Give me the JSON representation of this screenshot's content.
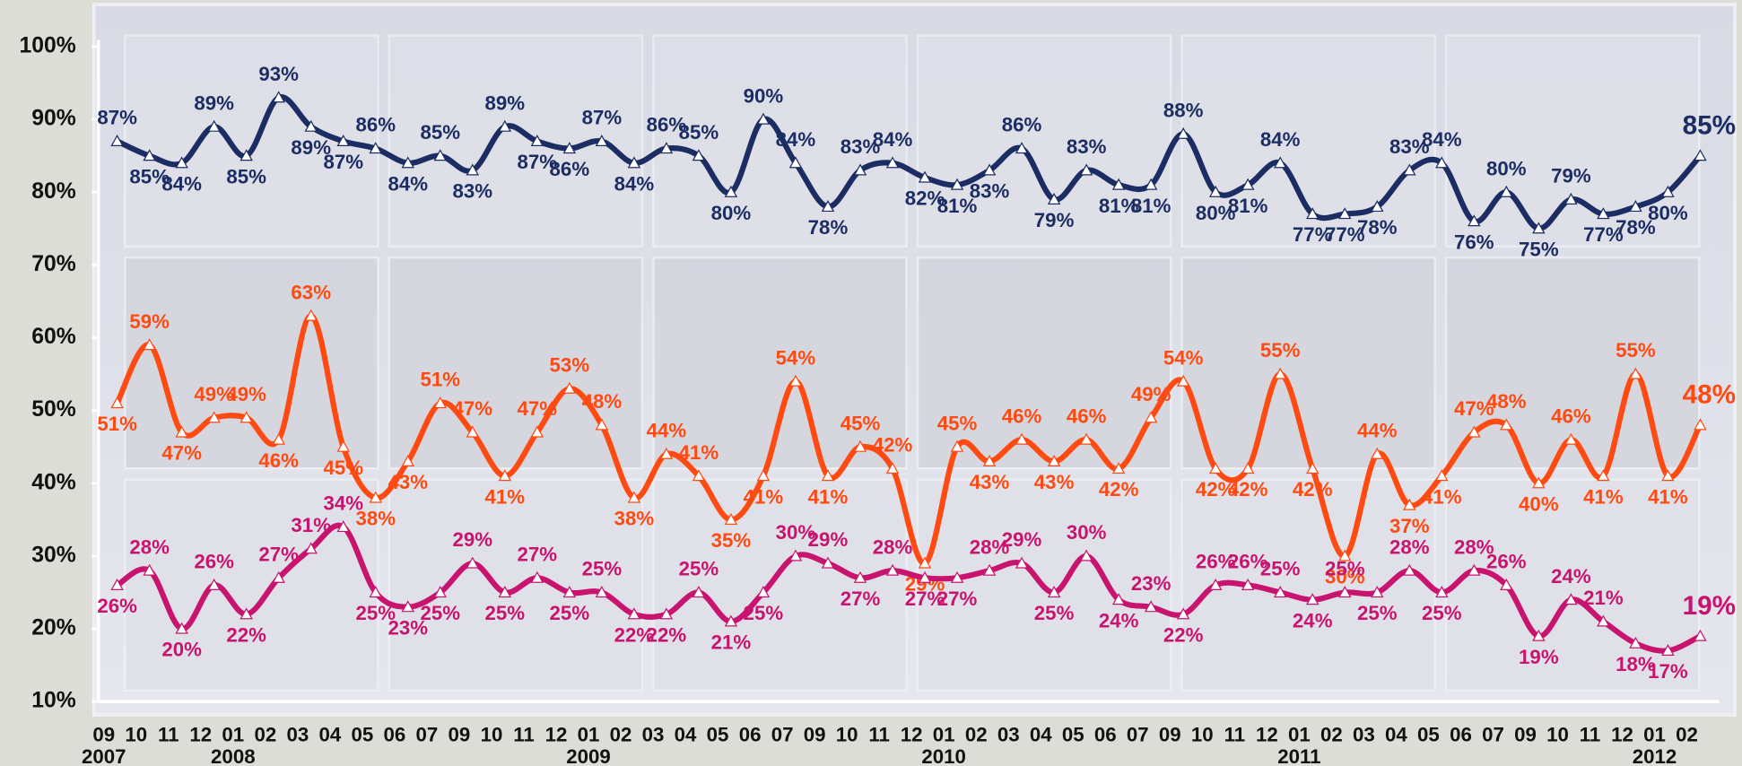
{
  "chart_data": {
    "type": "line",
    "categories": [
      "09",
      "10",
      "11",
      "12",
      "01",
      "02",
      "03",
      "04",
      "05",
      "06",
      "07",
      "09",
      "10",
      "11",
      "12",
      "01",
      "02",
      "03",
      "04",
      "05",
      "06",
      "07",
      "09",
      "10",
      "11",
      "12",
      "01",
      "02",
      "03",
      "04",
      "05",
      "06",
      "07",
      "09",
      "10",
      "11",
      "12",
      "01",
      "02",
      "03",
      "04",
      "05",
      "06",
      "07",
      "09",
      "10",
      "11",
      "12",
      "01",
      "02"
    ],
    "category_years": [
      "2007",
      null,
      null,
      null,
      "2008",
      null,
      null,
      null,
      null,
      null,
      null,
      null,
      null,
      null,
      null,
      "2009",
      null,
      null,
      null,
      null,
      null,
      null,
      null,
      null,
      null,
      null,
      "2010",
      null,
      null,
      null,
      null,
      null,
      null,
      null,
      null,
      null,
      null,
      "2011",
      null,
      null,
      null,
      null,
      null,
      null,
      null,
      null,
      null,
      null,
      "2012",
      null
    ],
    "ylim": [
      10,
      100
    ],
    "yticks": [
      {
        "value": 10,
        "label": "10%"
      },
      {
        "value": 20,
        "label": "20%"
      },
      {
        "value": 30,
        "label": "30%"
      },
      {
        "value": 40,
        "label": "40%"
      },
      {
        "value": 50,
        "label": "50%"
      },
      {
        "value": 60,
        "label": "60%"
      },
      {
        "value": 70,
        "label": "70%"
      },
      {
        "value": 80,
        "label": "80%"
      },
      {
        "value": 90,
        "label": "90%"
      },
      {
        "value": 100,
        "label": "100%"
      }
    ],
    "series": [
      {
        "color": "#1b2d63",
        "values": [
          87,
          85,
          84,
          89,
          85,
          93,
          89,
          87,
          86,
          84,
          85,
          83,
          89,
          87,
          86,
          87,
          84,
          86,
          85,
          80,
          90,
          84,
          78,
          83,
          84,
          82,
          81,
          83,
          86,
          79,
          83,
          81,
          81,
          88,
          80,
          81,
          84,
          77,
          77,
          78,
          83,
          84,
          76,
          80,
          75,
          79,
          77,
          78,
          80,
          85
        ],
        "value_labels": [
          "87%",
          "85%",
          "84%",
          "89%",
          "85%",
          "93%",
          "89%",
          "87%",
          "86%",
          "84%",
          "85%",
          "83%",
          "89%",
          "87%",
          "86%",
          "87%",
          "84%",
          "86%",
          "85%",
          "80%",
          "90%",
          "84%",
          "78%",
          "83%",
          "84%",
          "82%",
          "81%",
          "83%",
          "86%",
          "79%",
          "83%",
          "81%",
          "81%",
          "88%",
          "80%",
          "81%",
          "84%",
          "77%",
          "77%",
          "78%",
          "83%",
          "84%",
          "76%",
          "80%",
          "75%",
          "79%",
          "77%",
          "78%",
          "80%",
          "85%"
        ]
      },
      {
        "color": "#ff4a12",
        "values": [
          51,
          59,
          47,
          49,
          49,
          46,
          63,
          45,
          38,
          43,
          51,
          47,
          41,
          47,
          53,
          48,
          38,
          44,
          41,
          35,
          41,
          54,
          41,
          45,
          42,
          29,
          45,
          43,
          46,
          43,
          46,
          42,
          49,
          54,
          42,
          42,
          55,
          42,
          30,
          44,
          37,
          41,
          47,
          48,
          40,
          46,
          41,
          55,
          41,
          48
        ],
        "value_labels": [
          "51%",
          "59%",
          "47%",
          "49%",
          "49%",
          "46%",
          "63%",
          "45%",
          "38%",
          "43%",
          "51%",
          "47%",
          "41%",
          "47%",
          "53%",
          "48%",
          "38%",
          "44%",
          "41%",
          "35%",
          "41%",
          "54%",
          "41%",
          "45%",
          "42%",
          "29%",
          "45%",
          "43%",
          "46%",
          "43%",
          "46%",
          "42%",
          "49%",
          "54%",
          "42%",
          "42%",
          "55%",
          "42%",
          "30%",
          "44%",
          "37%",
          "41%",
          "47%",
          "48%",
          "40%",
          "46%",
          "41%",
          "55%",
          "41%",
          "48%"
        ]
      },
      {
        "color": "#c8146e",
        "values": [
          26,
          28,
          20,
          26,
          22,
          27,
          31,
          34,
          25,
          23,
          25,
          29,
          25,
          27,
          25,
          25,
          22,
          22,
          25,
          21,
          25,
          30,
          29,
          27,
          28,
          27,
          27,
          28,
          29,
          25,
          30,
          24,
          23,
          22,
          26,
          26,
          25,
          24,
          25,
          25,
          28,
          25,
          28,
          26,
          19,
          24,
          21,
          18,
          17,
          19
        ],
        "value_labels": [
          "26%",
          "28%",
          "20%",
          "26%",
          "22%",
          "27%",
          "31%",
          "34%",
          "25%",
          "23%",
          "25%",
          "29%",
          "25%",
          "27%",
          "25%",
          "25%",
          "22%",
          "22%",
          "25%",
          "21%",
          "25%",
          "30%",
          "29%",
          "27%",
          "28%",
          "27%",
          "27%",
          "28%",
          "29%",
          "25%",
          "30%",
          "24%",
          "23%",
          "22%",
          "26%",
          "26%",
          "25%",
          "24%",
          "25%",
          "25%",
          "28%",
          "25%",
          "28%",
          "26%",
          "19%",
          "24%",
          "21%",
          "18%",
          "17%",
          "19%"
        ]
      }
    ]
  }
}
